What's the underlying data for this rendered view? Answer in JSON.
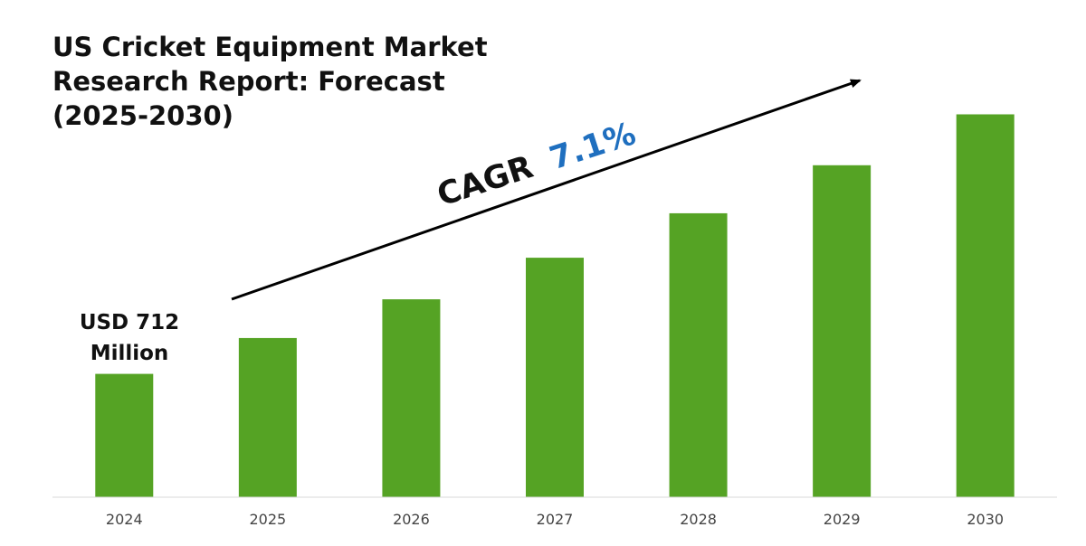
{
  "chart_data": {
    "type": "bar",
    "title_lines": [
      "US Cricket Equipment Market",
      "Research Report: Forecast",
      "(2025-2030)"
    ],
    "categories": [
      "2024",
      "2025",
      "2026",
      "2027",
      "2028",
      "2029",
      "2030"
    ],
    "values": [
      712,
      762,
      816,
      874,
      936,
      1003,
      1074
    ],
    "ylim": [
      540,
      1120
    ],
    "grid": false,
    "legend": "none",
    "bar_color": "#55a324",
    "annotations": {
      "start_label_lines": [
        "USD 712",
        "Million"
      ],
      "cagr_prefix": "CAGR",
      "cagr_value": "7.1%",
      "cagr_value_color": "#1f6fbf",
      "arrow_color": "#000000"
    }
  }
}
